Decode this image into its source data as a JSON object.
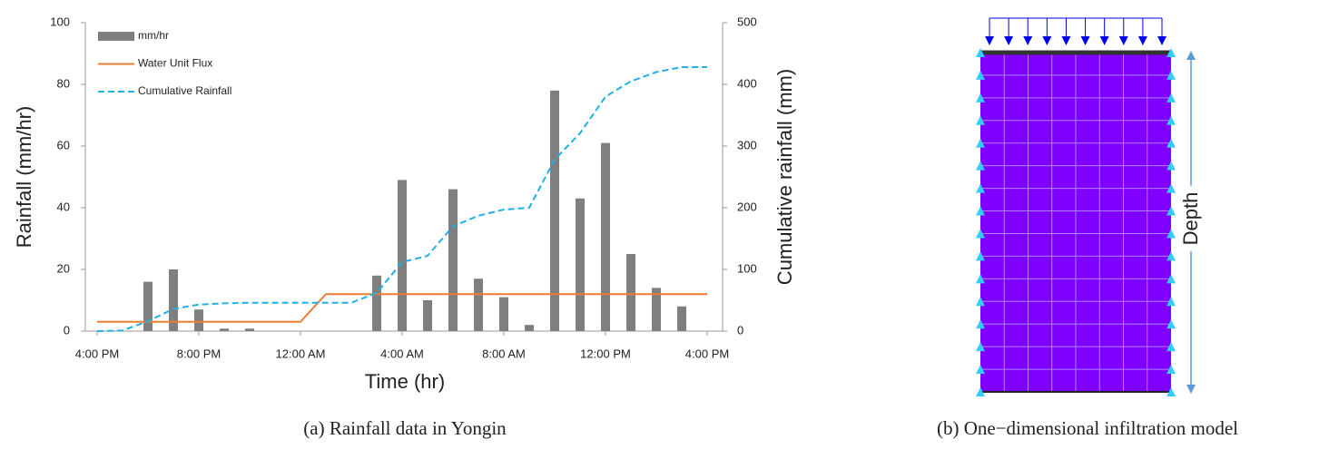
{
  "chart_data": {
    "type": "combo",
    "x": [
      0,
      1,
      2,
      3,
      4,
      5,
      6,
      7,
      8,
      9,
      10,
      11,
      12,
      13,
      14,
      15,
      16,
      17,
      18,
      19,
      20,
      21,
      22,
      23,
      24
    ],
    "xlim": [
      0,
      24
    ],
    "xticks": [
      {
        "value": 0,
        "label": "4:00 PM"
      },
      {
        "value": 4,
        "label": "8:00 PM"
      },
      {
        "value": 8,
        "label": "12:00 AM"
      },
      {
        "value": 12,
        "label": "4:00 AM"
      },
      {
        "value": 16,
        "label": "8:00 AM"
      },
      {
        "value": 20,
        "label": "12:00 PM"
      },
      {
        "value": 24,
        "label": "4:00 PM"
      }
    ],
    "ylim": [
      0,
      100
    ],
    "yticks": [
      0,
      20,
      40,
      60,
      80,
      100
    ],
    "y2lim": [
      0,
      500
    ],
    "y2ticks": [
      0,
      100,
      200,
      300,
      400,
      500
    ],
    "xlabel": "Time (hr)",
    "ylabel": "Rainfall (mm/hr)",
    "y2label": "Cumulative rainfall (mm)",
    "caption": "(a) Rainfall data in Yongin",
    "legend": "upper left",
    "series": [
      {
        "name": "mm/hr",
        "type": "bar",
        "color": "#7f7f7f",
        "values": [
          0,
          0,
          16,
          20,
          7,
          0.8,
          0.8,
          0,
          0,
          0,
          0,
          18,
          49,
          10,
          46,
          17,
          11,
          2,
          78,
          43,
          61,
          25,
          14,
          8,
          0
        ]
      },
      {
        "name": "Water Unit Flux",
        "type": "line",
        "color": "#ed7d31",
        "x": [
          0,
          8,
          9,
          24
        ],
        "values": [
          3,
          3,
          12,
          12
        ]
      },
      {
        "name": "Cumulative Rainfall",
        "type": "line",
        "dash": true,
        "axis": "y2",
        "color": "#1fb0e6",
        "values": [
          0,
          1,
          16,
          36,
          43,
          45,
          46,
          46,
          46,
          46,
          46,
          62,
          112,
          122,
          170,
          187,
          197,
          200,
          278,
          321,
          380,
          405,
          420,
          428,
          428
        ]
      }
    ]
  },
  "diagram": {
    "label": "Depth",
    "caption": "(b) One−dimensional infiltration model"
  }
}
